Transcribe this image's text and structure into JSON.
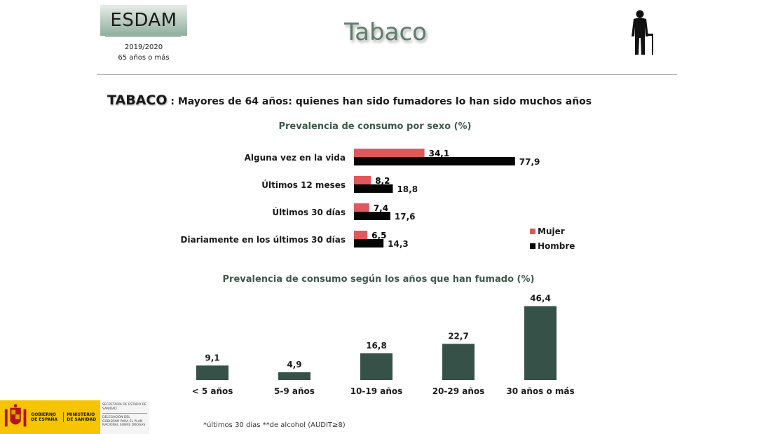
{
  "header": {
    "logo_text": "ESDAM",
    "survey_year": "2019/2020",
    "survey_population": "65 años o más",
    "page_title": "Tabaco",
    "person_icon": "elderly-person-icon"
  },
  "headline": {
    "key": "TABACO",
    "text": " : Mayores de 64 años: quienes han sido fumadores lo han sido muchos años"
  },
  "colors": {
    "mujer": "#e0585c",
    "hombre": "#050505",
    "bars": "#365148",
    "title_green": "#3d5a4c"
  },
  "chart_data": [
    {
      "type": "bar",
      "orientation": "horizontal",
      "title": "Prevalencia de consumo por sexo (%)",
      "categories": [
        "Alguna vez en la vida",
        "Últimos 12 meses",
        "Últimos 30 días",
        "Diariamente en los últimos 30 días"
      ],
      "series": [
        {
          "name": "Mujer",
          "values": [
            34.1,
            8.2,
            7.4,
            6.5
          ],
          "labels": [
            "34,1",
            "8,2",
            "7,4",
            "6,5"
          ]
        },
        {
          "name": "Hombre",
          "values": [
            77.9,
            18.8,
            17.6,
            14.3
          ],
          "labels": [
            "77,9",
            "18,8",
            "17,6",
            "14,3"
          ]
        }
      ],
      "legend_position": "right",
      "grid": false
    },
    {
      "type": "bar",
      "orientation": "vertical",
      "title": "Prevalencia de consumo según los años que han fumado (%)",
      "categories": [
        "< 5 años",
        "5-9 años",
        "10-19 años",
        "20-29 años",
        "30 años o más"
      ],
      "values": [
        9.1,
        4.9,
        16.8,
        22.7,
        46.4
      ],
      "labels": [
        "9,1",
        "4,9",
        "16,8",
        "22,7",
        "46,4"
      ],
      "grid": false
    }
  ],
  "footnote": "*últimos 30 días   **de alcohol (AUDIT≥8)",
  "gov_logo": {
    "country": "GOBIERNO DE ESPAÑA",
    "ministry": "MINISTERIO DE SANIDAD",
    "secretaria": "SECRETARÍA DE ESTADO DE SANIDAD",
    "delegacion": "DELEGACIÓN DEL GOBIERNO PARA EL PLAN NACIONAL SOBRE DROGAS"
  }
}
